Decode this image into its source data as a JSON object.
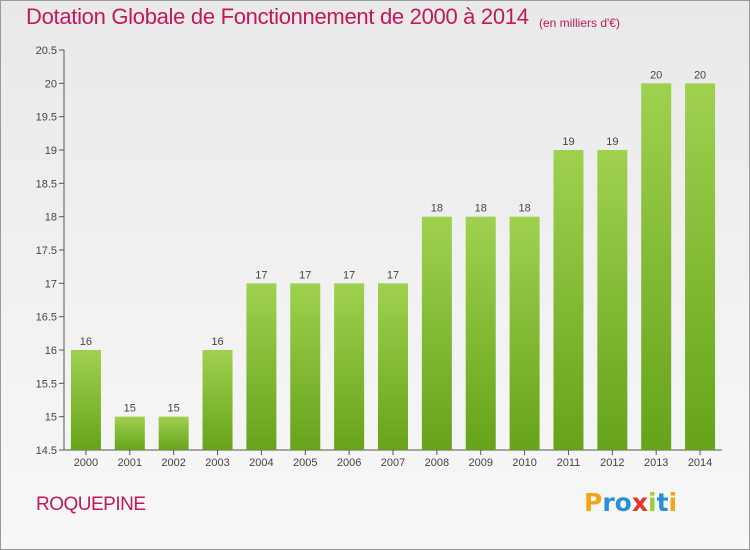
{
  "chart_data": {
    "type": "bar",
    "title": "Dotation Globale de Fonctionnement de 2000 à 2014",
    "unit_label": "(en milliers d'€)",
    "categories": [
      "2000",
      "2001",
      "2002",
      "2003",
      "2004",
      "2005",
      "2006",
      "2007",
      "2008",
      "2009",
      "2010",
      "2011",
      "2012",
      "2013",
      "2014"
    ],
    "values": [
      16,
      15,
      15,
      16,
      17,
      17,
      17,
      17,
      18,
      18,
      18,
      19,
      19,
      20,
      20
    ],
    "ylim": [
      14.5,
      20.5
    ],
    "yticks": [
      "14.5",
      "15",
      "15.5",
      "16",
      "16.5",
      "17",
      "17.5",
      "18",
      "18.5",
      "19",
      "19.5",
      "20",
      "20.5"
    ],
    "xlabel": "",
    "ylabel": "",
    "grid": false,
    "colors": {
      "bar_light": "#9fd14f",
      "bar_dark": "#66a31a",
      "text": "#444444",
      "title": "#c2185b"
    }
  },
  "commune": "ROQUEPINE",
  "logo": {
    "letters": [
      {
        "ch": "P",
        "color": "#f5a31a"
      },
      {
        "ch": "r",
        "color": "#2a8fd6"
      },
      {
        "ch": "o",
        "color": "#2a8fd6"
      },
      {
        "ch": "x",
        "color": "#e8332a"
      },
      {
        "ch": "i",
        "color": "#9ccd3a"
      },
      {
        "ch": "t",
        "color": "#2a8fd6"
      },
      {
        "ch": "i",
        "color": "#f5a31a"
      }
    ]
  }
}
